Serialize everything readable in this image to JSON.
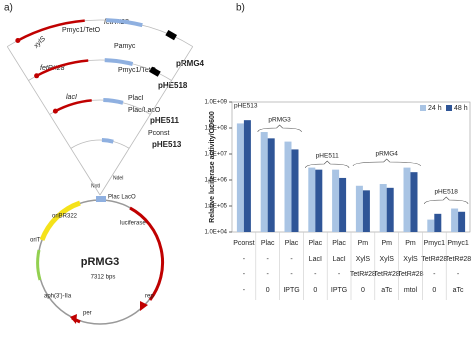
{
  "panel_labels": [
    "a)",
    "b)"
  ],
  "diagram": {
    "labels": [
      "xylS",
      "Pmyc1/TetO",
      "fetR#28",
      "Pamyc",
      "pRMG4",
      "fetR#28",
      "Pmyc1/TetO",
      "pHE518",
      "lacI",
      "PlacI",
      "Plac/LacO",
      "pHE511",
      "Pconst",
      "pHE513",
      "NdeI",
      "NotI",
      "Plac LacO",
      "oriBR322",
      "luciferase",
      "oriT",
      "pRMG3",
      "7312 bps",
      "aph(3')-IIa",
      "rep",
      "per"
    ]
  },
  "chart_data": {
    "type": "bar",
    "y_label": "Relative luciferase activity/OD600",
    "categories": [
      "Pconst",
      "Plac",
      "Plac",
      "Plac",
      "Plac",
      "Pm",
      "Pm",
      "Pm",
      "Pmyc1",
      "Pmyc1"
    ],
    "category_details": [
      [
        "-",
        "-",
        "-",
        "LacI",
        "LacI",
        "XylS",
        "XylS",
        "XylS",
        "TetR#28",
        "TetR#28"
      ],
      [
        "-",
        "-",
        "-",
        "-",
        "-",
        "TetR#28",
        "TetR#28",
        "TetR#28",
        "-",
        "-"
      ],
      [
        "-",
        "0",
        "IPTG",
        "0",
        "IPTG",
        "0",
        "aTc",
        "mtol",
        "0",
        "aTc"
      ]
    ],
    "groups": [
      "pHE513",
      "pRMG3",
      "pHE511",
      "pRMG4",
      "pHE518"
    ],
    "series": [
      {
        "name": "24 h",
        "color": "#a9c4e4",
        "values": [
          150000000,
          70000000,
          30000000,
          3000000,
          2500000,
          600000,
          700000,
          3000000,
          30000,
          80000
        ]
      },
      {
        "name": "48 h",
        "color": "#2f5597",
        "values": [
          200000000,
          40000000,
          15000000,
          2500000,
          1200000,
          400000,
          500000,
          2000000,
          50000,
          60000
        ]
      }
    ],
    "log_y": true,
    "ylim": [
      10000,
      1000000000
    ],
    "yticks": [
      {
        "value": 10000,
        "label": "1.0E+04"
      },
      {
        "value": 100000,
        "label": "1.0E+05"
      },
      {
        "value": 1000000,
        "label": "1.0E+06"
      },
      {
        "value": 10000000,
        "label": "1.0E+07"
      },
      {
        "value": 100000000,
        "label": "1.0E+08"
      },
      {
        "value": 1000000000,
        "label": "1.0E+09"
      }
    ],
    "legend": "top-right"
  }
}
